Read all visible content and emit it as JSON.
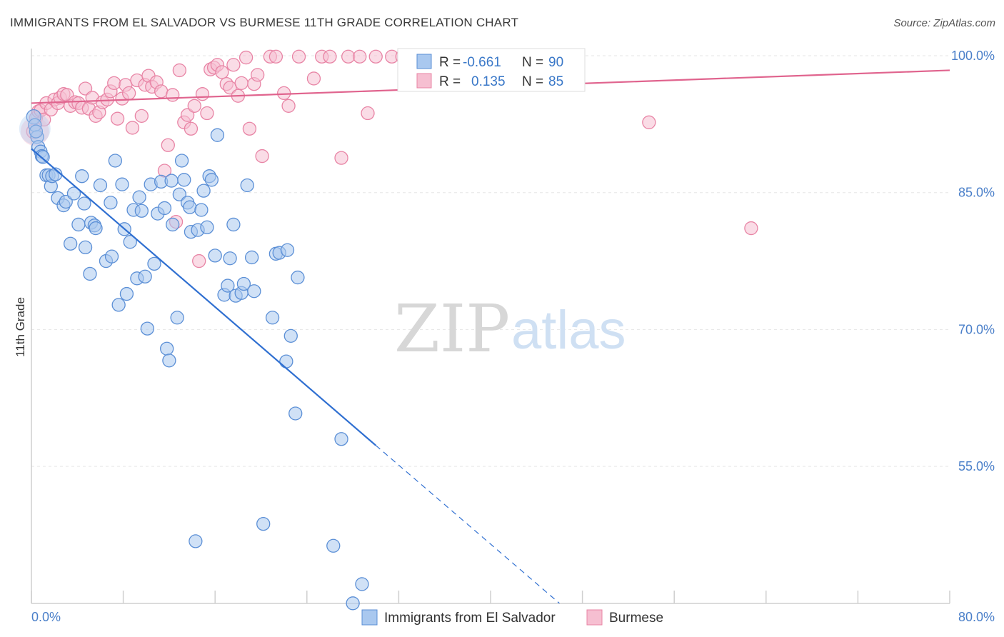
{
  "title": "IMMIGRANTS FROM EL SALVADOR VS BURMESE 11TH GRADE CORRELATION CHART",
  "source": "Source: ZipAtlas.com",
  "watermark": {
    "zip": "ZIP",
    "atlas": "atlas"
  },
  "legend_box": {
    "rows": [
      {
        "r_label": "R =",
        "r_value": "-0.661",
        "n_label": "N =",
        "n_value": "90"
      },
      {
        "r_label": "R =",
        "r_value": "0.135",
        "n_label": "N =",
        "n_value": "85"
      }
    ]
  },
  "bottom_legend": [
    "Immigrants from El Salvador",
    "Burmese"
  ],
  "colors": {
    "blue_fill": "#a9c8ef",
    "blue_stroke": "#5b8fd6",
    "blue_line": "#2f6fd1",
    "pink_fill": "#f6bfd1",
    "pink_stroke": "#e884a5",
    "pink_line": "#e0648e",
    "tick_text": "#4a7fc9",
    "grid": "#e6e6e6"
  },
  "chart_data": {
    "type": "scatter",
    "title": "IMMIGRANTS FROM EL SALVADOR VS BURMESE 11TH GRADE CORRELATION CHART",
    "xlabel": "",
    "ylabel": "11th Grade",
    "xlim": [
      0,
      80
    ],
    "ylim": [
      39.5,
      101
    ],
    "x_tick_labels": [
      "0.0%",
      "80.0%"
    ],
    "y_ticks": [
      100,
      85,
      70,
      55
    ],
    "y_tick_labels": [
      "100.0%",
      "85.0%",
      "70.0%",
      "55.0%"
    ],
    "grid": "horizontal dashed",
    "legend": "top-center",
    "series": [
      {
        "name": "Immigrants from El Salvador",
        "R": -0.661,
        "N": 90,
        "trend": {
          "x0": 0.0,
          "y0": 89.8,
          "x1": 30.0,
          "y1": 57.3,
          "x_dashed_end": 46.0,
          "y_dashed_end": 40.0
        },
        "points": [
          [
            0.2,
            93.3
          ],
          [
            0.3,
            92.4
          ],
          [
            0.5,
            91.1
          ],
          [
            0.6,
            90.0
          ],
          [
            0.8,
            89.5
          ],
          [
            0.9,
            89.0
          ],
          [
            1.0,
            88.9
          ],
          [
            1.3,
            86.9
          ],
          [
            1.5,
            86.9
          ],
          [
            1.7,
            85.7
          ],
          [
            1.8,
            86.8
          ],
          [
            2.1,
            87.0
          ],
          [
            2.3,
            84.4
          ],
          [
            2.8,
            83.6
          ],
          [
            3.0,
            84.0
          ],
          [
            3.4,
            79.4
          ],
          [
            3.7,
            84.9
          ],
          [
            4.1,
            81.5
          ],
          [
            4.4,
            86.8
          ],
          [
            4.6,
            83.8
          ],
          [
            4.7,
            79.0
          ],
          [
            5.1,
            76.1
          ],
          [
            5.2,
            81.7
          ],
          [
            5.5,
            81.4
          ],
          [
            5.6,
            81.1
          ],
          [
            6.0,
            85.8
          ],
          [
            6.5,
            77.5
          ],
          [
            6.9,
            83.9
          ],
          [
            7.0,
            78.0
          ],
          [
            7.3,
            88.5
          ],
          [
            7.6,
            72.7
          ],
          [
            7.9,
            85.9
          ],
          [
            8.1,
            81.0
          ],
          [
            8.3,
            73.9
          ],
          [
            8.6,
            79.6
          ],
          [
            8.9,
            83.1
          ],
          [
            9.2,
            75.6
          ],
          [
            9.4,
            84.5
          ],
          [
            9.6,
            83.0
          ],
          [
            9.9,
            75.8
          ],
          [
            10.1,
            70.1
          ],
          [
            10.4,
            85.9
          ],
          [
            10.7,
            77.2
          ],
          [
            11.0,
            82.7
          ],
          [
            11.3,
            86.2
          ],
          [
            11.6,
            83.3
          ],
          [
            11.8,
            67.9
          ],
          [
            12.0,
            66.6
          ],
          [
            12.2,
            86.3
          ],
          [
            12.3,
            81.5
          ],
          [
            12.7,
            71.3
          ],
          [
            12.9,
            84.8
          ],
          [
            13.1,
            88.5
          ],
          [
            13.3,
            86.4
          ],
          [
            13.6,
            83.9
          ],
          [
            13.8,
            83.4
          ],
          [
            13.9,
            80.7
          ],
          [
            14.3,
            46.8
          ],
          [
            14.5,
            80.9
          ],
          [
            14.8,
            83.1
          ],
          [
            15.0,
            85.2
          ],
          [
            15.3,
            81.2
          ],
          [
            15.5,
            86.8
          ],
          [
            15.7,
            86.4
          ],
          [
            16.0,
            78.1
          ],
          [
            16.2,
            91.3
          ],
          [
            16.8,
            73.8
          ],
          [
            17.1,
            74.8
          ],
          [
            17.3,
            77.8
          ],
          [
            17.6,
            81.5
          ],
          [
            17.8,
            73.7
          ],
          [
            18.3,
            74.0
          ],
          [
            18.5,
            75.0
          ],
          [
            18.8,
            85.8
          ],
          [
            19.2,
            77.9
          ],
          [
            19.4,
            74.2
          ],
          [
            20.2,
            48.7
          ],
          [
            21.0,
            71.3
          ],
          [
            21.3,
            78.3
          ],
          [
            21.6,
            78.4
          ],
          [
            22.2,
            66.5
          ],
          [
            22.3,
            78.7
          ],
          [
            22.6,
            69.3
          ],
          [
            23.0,
            60.8
          ],
          [
            23.2,
            75.7
          ],
          [
            26.3,
            46.3
          ],
          [
            27.0,
            58.0
          ],
          [
            28.0,
            40.0
          ],
          [
            28.8,
            42.1
          ],
          [
            0.4,
            91.7
          ]
        ]
      },
      {
        "name": "Burmese",
        "R": 0.135,
        "N": 85,
        "trend": {
          "x0": 0.0,
          "y0": 94.8,
          "x1": 80.0,
          "y1": 98.4
        },
        "points": [
          [
            0.2,
            91.7
          ],
          [
            0.4,
            93.2
          ],
          [
            0.6,
            93.9
          ],
          [
            0.8,
            94.0
          ],
          [
            1.1,
            93.0
          ],
          [
            1.3,
            94.8
          ],
          [
            1.7,
            94.1
          ],
          [
            2.0,
            95.2
          ],
          [
            2.3,
            94.8
          ],
          [
            2.5,
            95.4
          ],
          [
            2.8,
            95.8
          ],
          [
            3.1,
            95.7
          ],
          [
            3.4,
            94.5
          ],
          [
            3.8,
            94.9
          ],
          [
            4.1,
            94.8
          ],
          [
            4.4,
            94.3
          ],
          [
            4.7,
            96.4
          ],
          [
            5.0,
            94.2
          ],
          [
            5.3,
            95.4
          ],
          [
            5.6,
            93.4
          ],
          [
            5.9,
            93.8
          ],
          [
            6.2,
            94.9
          ],
          [
            6.6,
            95.2
          ],
          [
            6.9,
            96.1
          ],
          [
            7.2,
            97.0
          ],
          [
            7.5,
            93.1
          ],
          [
            7.9,
            95.3
          ],
          [
            8.2,
            96.8
          ],
          [
            8.5,
            95.9
          ],
          [
            8.8,
            92.1
          ],
          [
            9.2,
            97.3
          ],
          [
            9.6,
            93.4
          ],
          [
            9.9,
            96.8
          ],
          [
            10.2,
            97.8
          ],
          [
            10.5,
            96.6
          ],
          [
            10.9,
            97.1
          ],
          [
            11.3,
            96.1
          ],
          [
            11.6,
            87.4
          ],
          [
            11.9,
            90.2
          ],
          [
            12.3,
            95.7
          ],
          [
            12.6,
            81.8
          ],
          [
            12.9,
            98.4
          ],
          [
            13.3,
            92.7
          ],
          [
            13.6,
            93.5
          ],
          [
            13.9,
            92.0
          ],
          [
            14.2,
            94.5
          ],
          [
            14.6,
            77.5
          ],
          [
            14.9,
            95.8
          ],
          [
            15.3,
            93.7
          ],
          [
            15.6,
            98.5
          ],
          [
            15.9,
            98.7
          ],
          [
            16.2,
            99.0
          ],
          [
            16.6,
            98.2
          ],
          [
            17.0,
            96.9
          ],
          [
            17.3,
            96.5
          ],
          [
            17.6,
            99.0
          ],
          [
            18.0,
            95.6
          ],
          [
            18.3,
            97.0
          ],
          [
            18.7,
            99.8
          ],
          [
            19.0,
            92.0
          ],
          [
            19.4,
            96.9
          ],
          [
            19.7,
            97.9
          ],
          [
            20.1,
            89.0
          ],
          [
            20.8,
            99.9
          ],
          [
            21.3,
            99.9
          ],
          [
            22.0,
            95.9
          ],
          [
            22.4,
            94.5
          ],
          [
            23.3,
            99.9
          ],
          [
            24.6,
            97.5
          ],
          [
            25.3,
            99.9
          ],
          [
            26.0,
            99.9
          ],
          [
            27.0,
            88.8
          ],
          [
            27.6,
            99.9
          ],
          [
            28.6,
            99.9
          ],
          [
            29.3,
            93.7
          ],
          [
            30.0,
            99.9
          ],
          [
            31.4,
            99.9
          ],
          [
            32.3,
            99.9
          ],
          [
            33.0,
            98.9
          ],
          [
            35.1,
            99.9
          ],
          [
            37.0,
            98.6
          ],
          [
            38.6,
            99.9
          ],
          [
            39.9,
            99.9
          ],
          [
            53.8,
            92.7
          ],
          [
            62.7,
            81.1
          ]
        ]
      }
    ]
  }
}
